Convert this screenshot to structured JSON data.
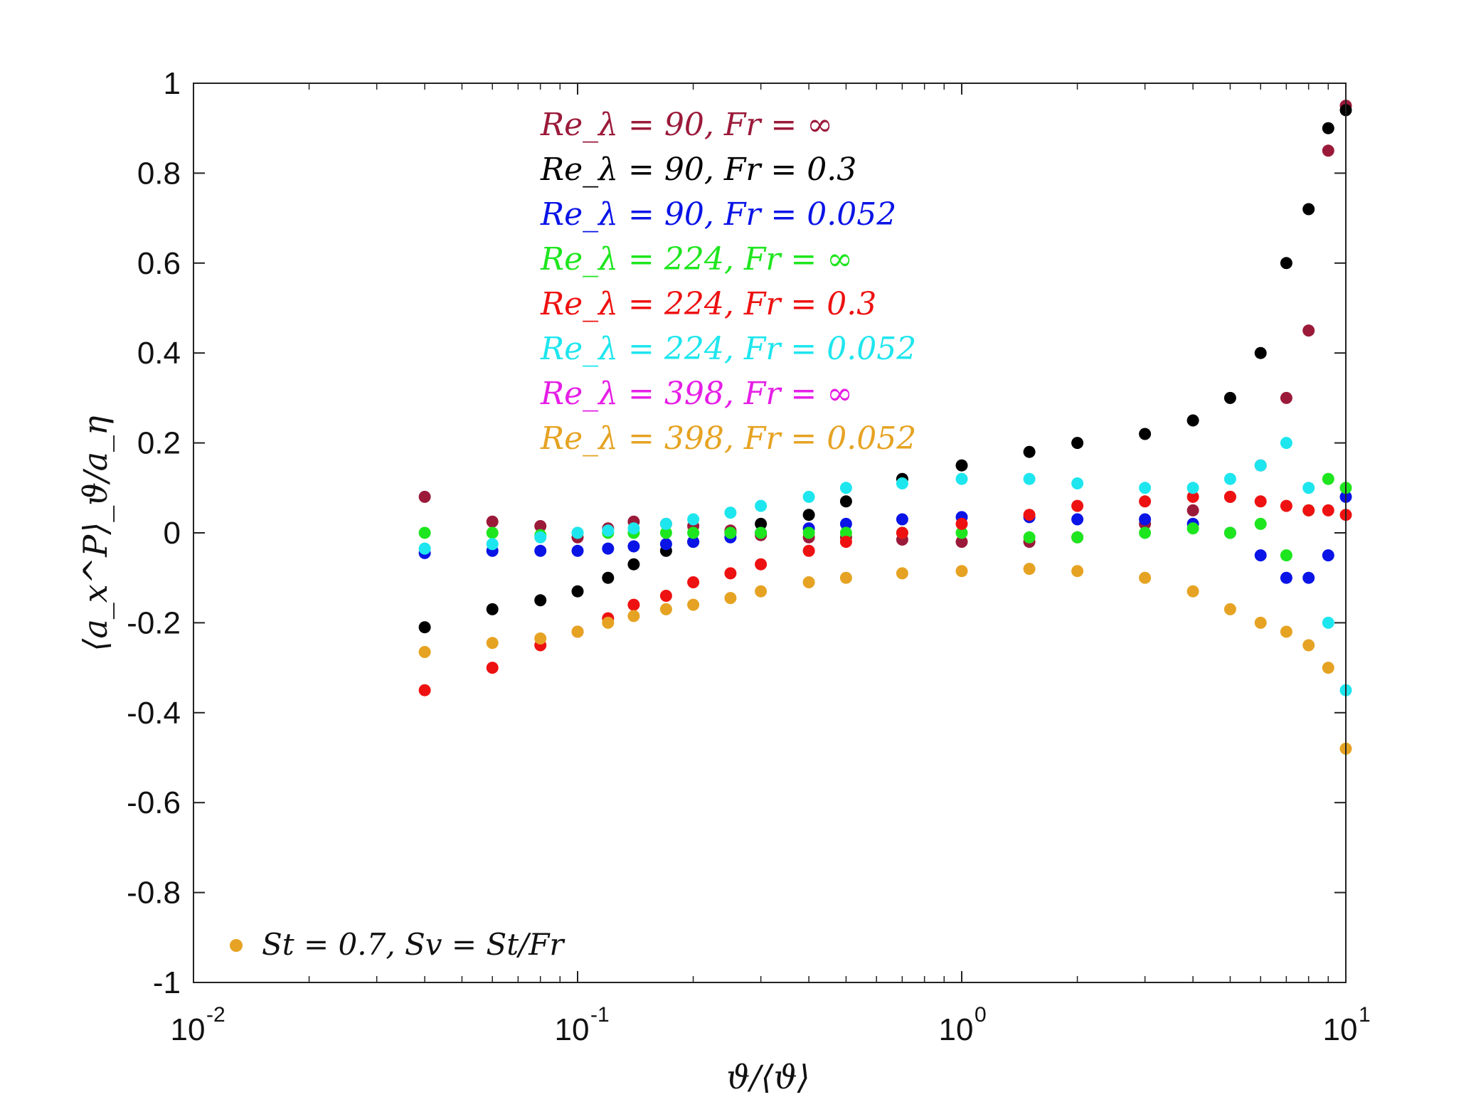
{
  "chart_data": {
    "type": "scatter",
    "x_scale": "log",
    "xlim": [
      0.01,
      10
    ],
    "ylim": [
      -1,
      1
    ],
    "xlabel": "ϑ/⟨ϑ⟩",
    "ylabel": "⟨a_x^P⟩_ϑ/a_η",
    "x_ticks": [
      {
        "base": "10",
        "exp": "-2"
      },
      {
        "base": "10",
        "exp": "-1"
      },
      {
        "base": "10",
        "exp": "0"
      },
      {
        "base": "10",
        "exp": "1"
      }
    ],
    "y_ticks": [
      "1",
      "0.8",
      "0.6",
      "0.4",
      "0.2",
      "0",
      "-0.2",
      "-0.4",
      "-0.6",
      "-0.8",
      "-1"
    ],
    "grid": false,
    "legend_placement": "top-center",
    "annotation": "St = 0.7, Sv = St/Fr",
    "annotation_color": "#e6a323",
    "series": [
      {
        "name": "Re_λ = 90, Fr = ∞",
        "color": "#9b1a3a",
        "x": [
          0.04,
          0.06,
          0.08,
          0.1,
          0.12,
          0.14,
          0.17,
          0.2,
          0.25,
          0.3,
          0.4,
          0.5,
          0.7,
          1.0,
          1.5,
          2.0,
          3.0,
          4.0,
          5.0,
          6.0,
          7.0,
          8.0,
          9.0,
          10.0
        ],
        "y": [
          0.08,
          0.025,
          0.015,
          -0.01,
          0.01,
          0.025,
          0.02,
          0.015,
          0.005,
          -0.005,
          -0.01,
          -0.01,
          -0.015,
          -0.02,
          -0.02,
          -0.01,
          0.02,
          0.05,
          0.08,
          0.15,
          0.3,
          0.45,
          0.85,
          0.95
        ]
      },
      {
        "name": "Re_λ = 90, Fr = 0.3",
        "color": "#000000",
        "x": [
          0.04,
          0.06,
          0.08,
          0.1,
          0.12,
          0.14,
          0.17,
          0.2,
          0.25,
          0.3,
          0.4,
          0.5,
          0.7,
          1.0,
          1.5,
          2.0,
          3.0,
          4.0,
          5.0,
          6.0,
          7.0,
          8.0,
          9.0,
          10.0
        ],
        "y": [
          -0.21,
          -0.17,
          -0.15,
          -0.13,
          -0.1,
          -0.07,
          -0.04,
          -0.02,
          0.0,
          0.02,
          0.04,
          0.07,
          0.12,
          0.15,
          0.18,
          0.2,
          0.22,
          0.25,
          0.3,
          0.4,
          0.6,
          0.72,
          0.9,
          0.94
        ]
      },
      {
        "name": "Re_λ = 90, Fr = 0.052",
        "color": "#0a14e6",
        "x": [
          0.04,
          0.06,
          0.08,
          0.1,
          0.12,
          0.14,
          0.17,
          0.2,
          0.25,
          0.3,
          0.4,
          0.5,
          0.7,
          1.0,
          1.5,
          2.0,
          3.0,
          4.0,
          5.0,
          6.0,
          7.0,
          8.0,
          9.0,
          10.0
        ],
        "y": [
          -0.045,
          -0.04,
          -0.04,
          -0.04,
          -0.035,
          -0.03,
          -0.025,
          -0.02,
          -0.01,
          0.0,
          0.01,
          0.02,
          0.03,
          0.035,
          0.035,
          0.03,
          0.03,
          0.02,
          0.0,
          -0.05,
          -0.1,
          -0.1,
          -0.05,
          0.08
        ]
      },
      {
        "name": "Re_λ = 224, Fr = ∞",
        "color": "#1ee61e",
        "x": [
          0.04,
          0.06,
          0.08,
          0.1,
          0.12,
          0.14,
          0.17,
          0.2,
          0.25,
          0.3,
          0.4,
          0.5,
          0.7,
          1.0,
          1.5,
          2.0,
          3.0,
          4.0,
          5.0,
          6.0,
          7.0,
          8.0,
          9.0,
          10.0
        ],
        "y": [
          0.0,
          0.0,
          -0.005,
          0.0,
          0.0,
          0.0,
          0.0,
          0.0,
          0.0,
          0.0,
          0.0,
          0.0,
          0.0,
          0.0,
          -0.01,
          -0.01,
          0.0,
          0.01,
          0.0,
          0.02,
          -0.05,
          0.05,
          0.12,
          0.1
        ]
      },
      {
        "name": "Re_λ = 224, Fr = 0.3",
        "color": "#ee1111",
        "x": [
          0.04,
          0.06,
          0.08,
          0.1,
          0.12,
          0.14,
          0.17,
          0.2,
          0.25,
          0.3,
          0.4,
          0.5,
          0.7,
          1.0,
          1.5,
          2.0,
          3.0,
          4.0,
          5.0,
          6.0,
          7.0,
          8.0,
          9.0,
          10.0
        ],
        "y": [
          -0.35,
          -0.3,
          -0.25,
          -0.22,
          -0.19,
          -0.16,
          -0.14,
          -0.11,
          -0.09,
          -0.07,
          -0.04,
          -0.02,
          0.0,
          0.02,
          0.04,
          0.06,
          0.07,
          0.08,
          0.08,
          0.07,
          0.06,
          0.05,
          0.05,
          0.04
        ]
      },
      {
        "name": "Re_λ = 224, Fr = 0.052",
        "color": "#1ee6ee",
        "x": [
          0.04,
          0.06,
          0.08,
          0.1,
          0.12,
          0.14,
          0.17,
          0.2,
          0.25,
          0.3,
          0.4,
          0.5,
          0.7,
          1.0,
          1.5,
          2.0,
          3.0,
          4.0,
          5.0,
          6.0,
          7.0,
          8.0,
          9.0,
          10.0
        ],
        "y": [
          -0.035,
          -0.025,
          -0.01,
          0.0,
          0.005,
          0.01,
          0.02,
          0.03,
          0.045,
          0.06,
          0.08,
          0.1,
          0.11,
          0.12,
          0.12,
          0.11,
          0.1,
          0.1,
          0.12,
          0.15,
          0.2,
          0.1,
          -0.2,
          -0.35
        ]
      },
      {
        "name": "Re_λ = 398, Fr = ∞",
        "color": "#e61ee6",
        "x": [],
        "y": []
      },
      {
        "name": "Re_λ = 398, Fr = 0.052",
        "color": "#e6a323",
        "x": [
          0.04,
          0.06,
          0.08,
          0.1,
          0.12,
          0.14,
          0.17,
          0.2,
          0.25,
          0.3,
          0.4,
          0.5,
          0.7,
          1.0,
          1.5,
          2.0,
          3.0,
          4.0,
          5.0,
          6.0,
          7.0,
          8.0,
          9.0,
          10.0
        ],
        "y": [
          -0.265,
          -0.245,
          -0.235,
          -0.22,
          -0.2,
          -0.185,
          -0.17,
          -0.16,
          -0.145,
          -0.13,
          -0.11,
          -0.1,
          -0.09,
          -0.085,
          -0.08,
          -0.085,
          -0.1,
          -0.13,
          -0.17,
          -0.2,
          -0.22,
          -0.25,
          -0.3,
          -0.48
        ]
      }
    ]
  }
}
